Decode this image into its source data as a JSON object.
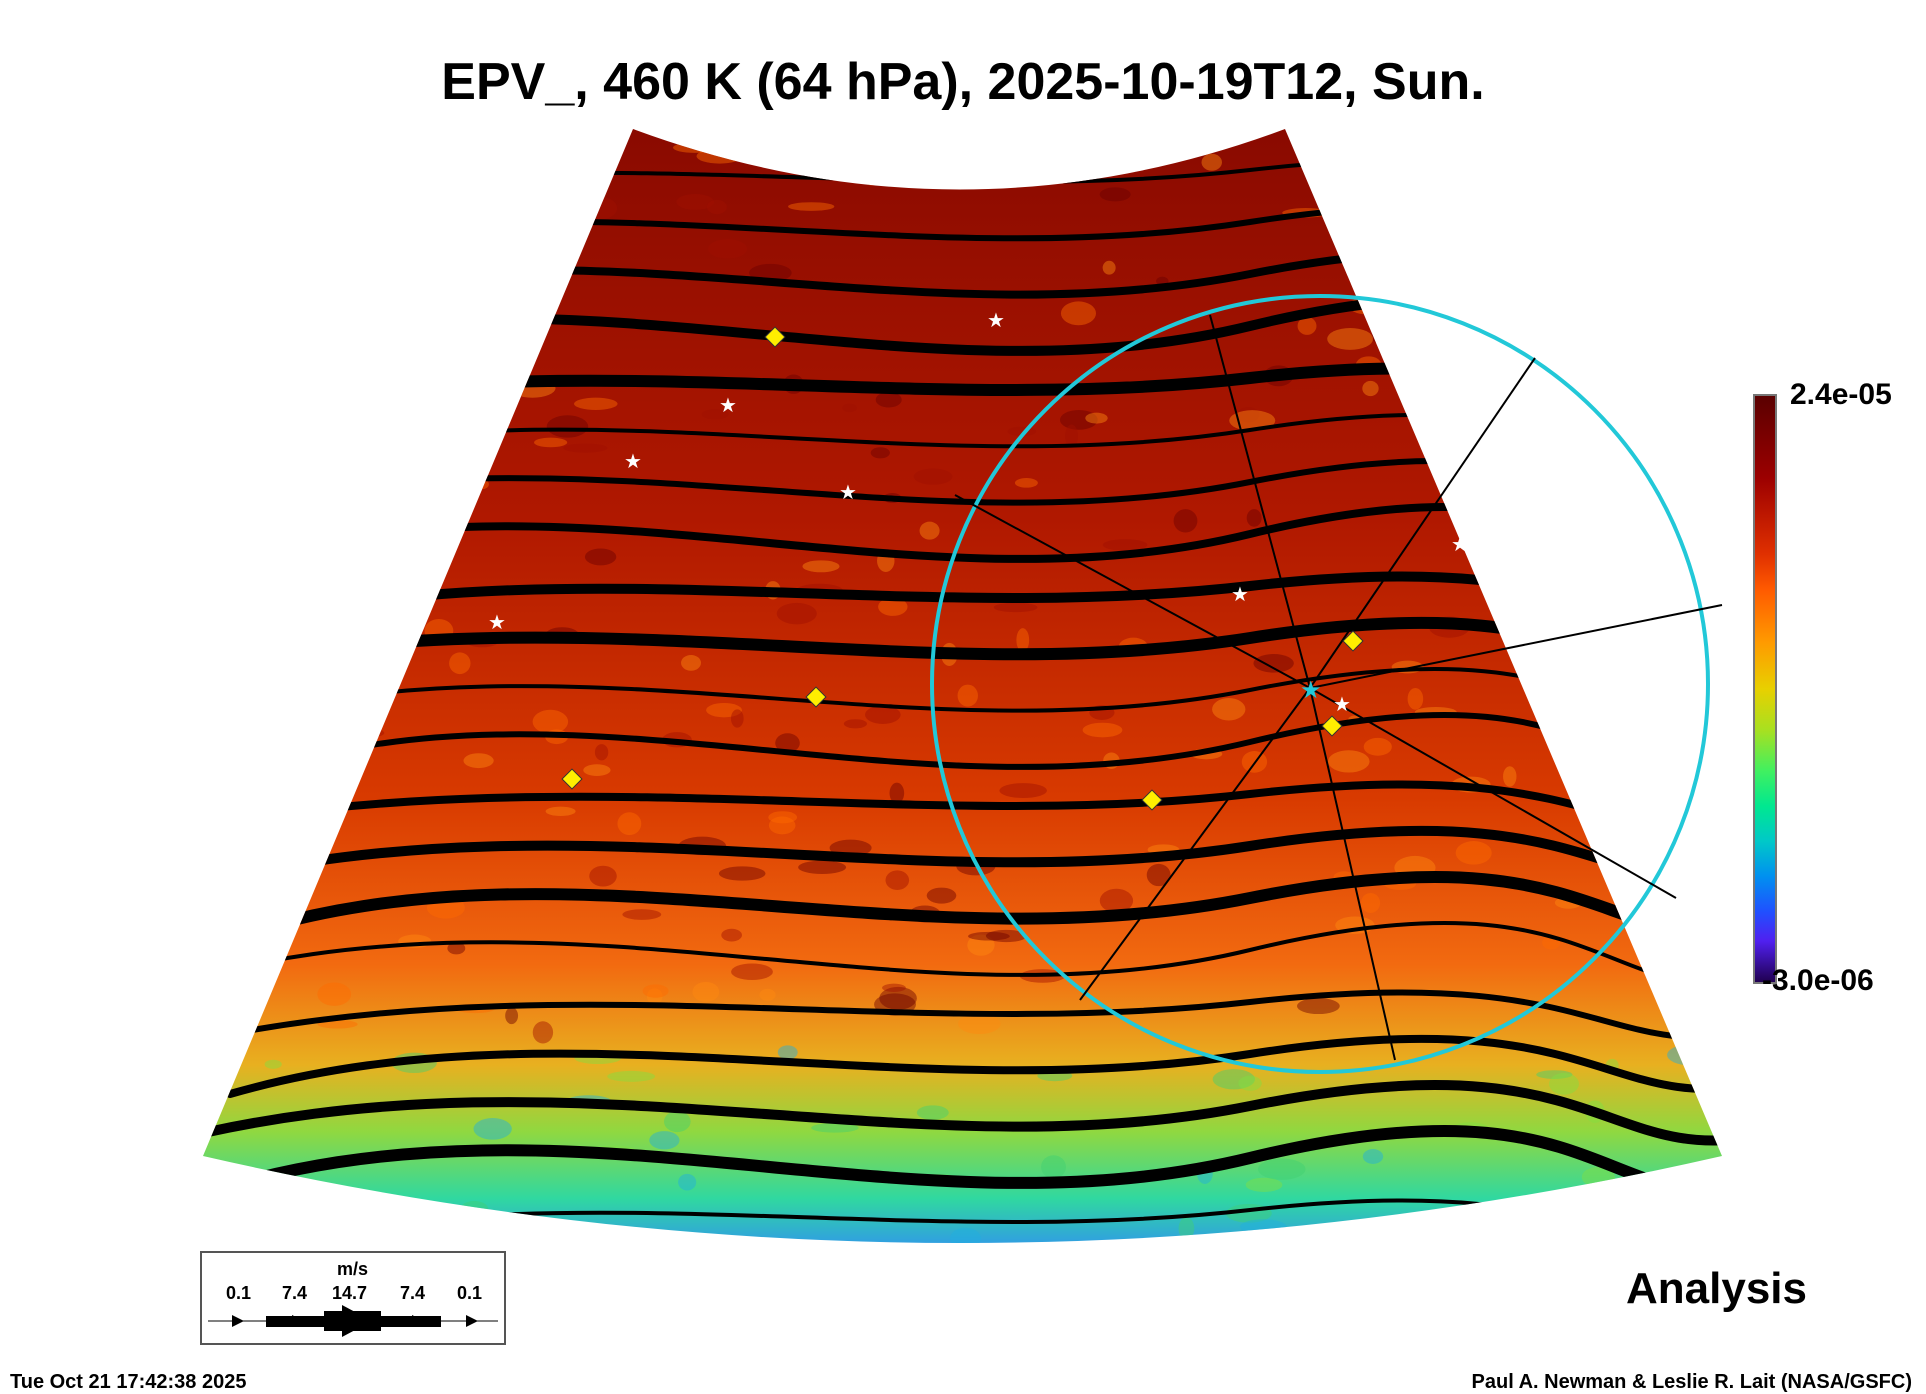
{
  "title": "EPV_, 460 K (64 hPa), 2025-10-19T12, Sun.",
  "colorbar": {
    "max_label": "2.4e-05",
    "min_label": "-3.0e-06",
    "max": 2.4e-05,
    "min": -3e-06
  },
  "legend": {
    "unit": "m/s",
    "ticks": [
      "0.1",
      "7.4",
      "14.7",
      "7.4",
      "0.1"
    ]
  },
  "product_label": "Analysis",
  "footer": {
    "timestamp": "Tue Oct 21 17:42:38 2025",
    "credit": "Paul A. Newman & Leslie R. Lait (NASA/GSFC)"
  },
  "colors": {
    "circle": "#22c8d8",
    "diamond": "#ffee00",
    "star": "#ffffff"
  }
}
